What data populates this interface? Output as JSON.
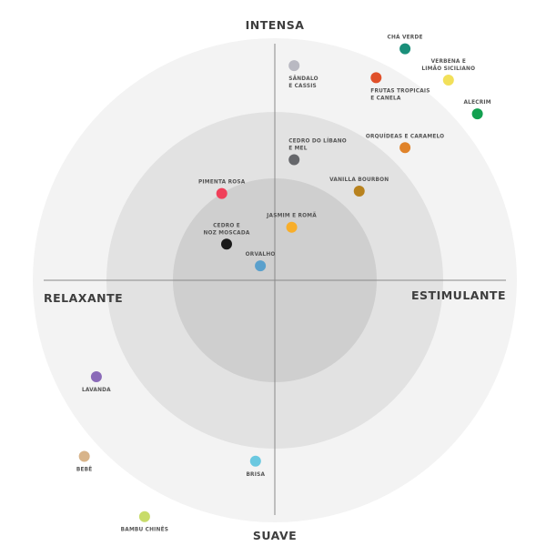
{
  "chart_data": {
    "type": "scatter",
    "axes": {
      "top": "INTENSA",
      "bottom": "SUAVE",
      "left": "RELAXANTE",
      "right": "ESTIMULANTE"
    },
    "xlim": [
      -100,
      100
    ],
    "ylim": [
      -100,
      100
    ],
    "grid": false,
    "background_rings": 3,
    "points": [
      {
        "label": [
          "SÂNDALO",
          "E CASSIS"
        ],
        "x": 8,
        "y": 89,
        "color": "#b9b9c2",
        "label_pos": "below"
      },
      {
        "label": [
          "CHÁ VERDE"
        ],
        "x": 54,
        "y": 96,
        "color": "#1a8f7a",
        "label_pos": "above"
      },
      {
        "label": [
          "FRUTAS TROPICAIS",
          "E CANELA"
        ],
        "x": 42,
        "y": 84,
        "color": "#e0502a",
        "label_pos": "below"
      },
      {
        "label": [
          "VERBENA E",
          "LIMÃO SICILIANO"
        ],
        "x": 72,
        "y": 83,
        "color": "#f2e05a",
        "label_pos": "above"
      },
      {
        "label": [
          "ALECRIM"
        ],
        "x": 84,
        "y": 69,
        "color": "#13a050",
        "label_pos": "above"
      },
      {
        "label": [
          "ORQUÍDEAS E CARAMELO"
        ],
        "x": 54,
        "y": 55,
        "color": "#e0832a",
        "label_pos": "above"
      },
      {
        "label": [
          "CEDRO DO LÍBANO",
          "E MEL"
        ],
        "x": 8,
        "y": 50,
        "color": "#66676b",
        "label_pos": "above"
      },
      {
        "label": [
          "VANILLA BOURBON"
        ],
        "x": 35,
        "y": 37,
        "color": "#b8821e",
        "label_pos": "above"
      },
      {
        "label": [
          "PIMENTA ROSA"
        ],
        "x": -22,
        "y": 36,
        "color": "#f0405a",
        "label_pos": "above"
      },
      {
        "label": [
          "JASMIM E ROMÃ"
        ],
        "x": 7,
        "y": 22,
        "color": "#f8ae2a",
        "label_pos": "above"
      },
      {
        "label": [
          "CEDRO E",
          "NOZ MOSCADA"
        ],
        "x": -20,
        "y": 15,
        "color": "#1a1a1a",
        "label_pos": "above"
      },
      {
        "label": [
          "ORVALHO"
        ],
        "x": -6,
        "y": 6,
        "color": "#5aa0cc",
        "label_pos": "above"
      },
      {
        "label": [
          "LAVANDA"
        ],
        "x": -74,
        "y": -40,
        "color": "#8a6ab8",
        "label_pos": "below"
      },
      {
        "label": [
          "BEBÊ"
        ],
        "x": -79,
        "y": -73,
        "color": "#d8b48a",
        "label_pos": "below"
      },
      {
        "label": [
          "BRISA"
        ],
        "x": -8,
        "y": -75,
        "color": "#6ac8e0",
        "label_pos": "below"
      },
      {
        "label": [
          "BAMBU CHINÊS"
        ],
        "x": -54,
        "y": -98,
        "color": "#c8dc6a",
        "label_pos": "below"
      }
    ]
  }
}
